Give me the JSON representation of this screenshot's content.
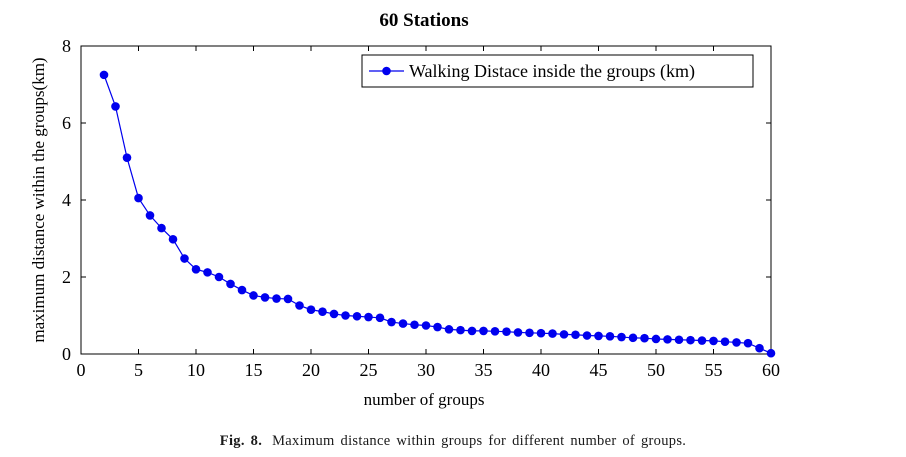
{
  "chart_data": {
    "type": "line",
    "title": "60 Stations",
    "xlabel": "number of groups",
    "ylabel": "maximum distance within the groups(km)",
    "xlim": [
      0,
      60
    ],
    "ylim": [
      0,
      8
    ],
    "x_ticks": [
      0,
      5,
      10,
      15,
      20,
      25,
      30,
      35,
      40,
      45,
      50,
      55,
      60
    ],
    "y_ticks": [
      0,
      2,
      4,
      6,
      8
    ],
    "grid": false,
    "legend_position": "top-right",
    "series": [
      {
        "name": "Walking Distace inside the groups (km)",
        "color": "#0000ee",
        "marker": "circle",
        "x": [
          2,
          3,
          4,
          5,
          6,
          7,
          8,
          9,
          10,
          11,
          12,
          13,
          14,
          15,
          16,
          17,
          18,
          19,
          20,
          21,
          22,
          23,
          24,
          25,
          26,
          27,
          28,
          29,
          30,
          31,
          32,
          33,
          34,
          35,
          36,
          37,
          38,
          39,
          40,
          41,
          42,
          43,
          44,
          45,
          46,
          47,
          48,
          49,
          50,
          51,
          52,
          53,
          54,
          55,
          56,
          57,
          58,
          59,
          60
        ],
        "values": [
          7.25,
          6.43,
          5.1,
          4.05,
          3.6,
          3.27,
          2.98,
          2.48,
          2.2,
          2.12,
          2.0,
          1.82,
          1.66,
          1.52,
          1.47,
          1.44,
          1.43,
          1.26,
          1.15,
          1.1,
          1.04,
          1.0,
          0.98,
          0.96,
          0.94,
          0.83,
          0.79,
          0.76,
          0.74,
          0.7,
          0.64,
          0.62,
          0.6,
          0.6,
          0.59,
          0.58,
          0.56,
          0.55,
          0.54,
          0.53,
          0.51,
          0.5,
          0.48,
          0.47,
          0.46,
          0.44,
          0.42,
          0.41,
          0.39,
          0.38,
          0.37,
          0.36,
          0.35,
          0.34,
          0.32,
          0.3,
          0.28,
          0.15,
          0.02
        ]
      }
    ]
  },
  "caption": {
    "label": "Fig. 8.",
    "text": "Maximum distance within groups for different number of groups."
  }
}
